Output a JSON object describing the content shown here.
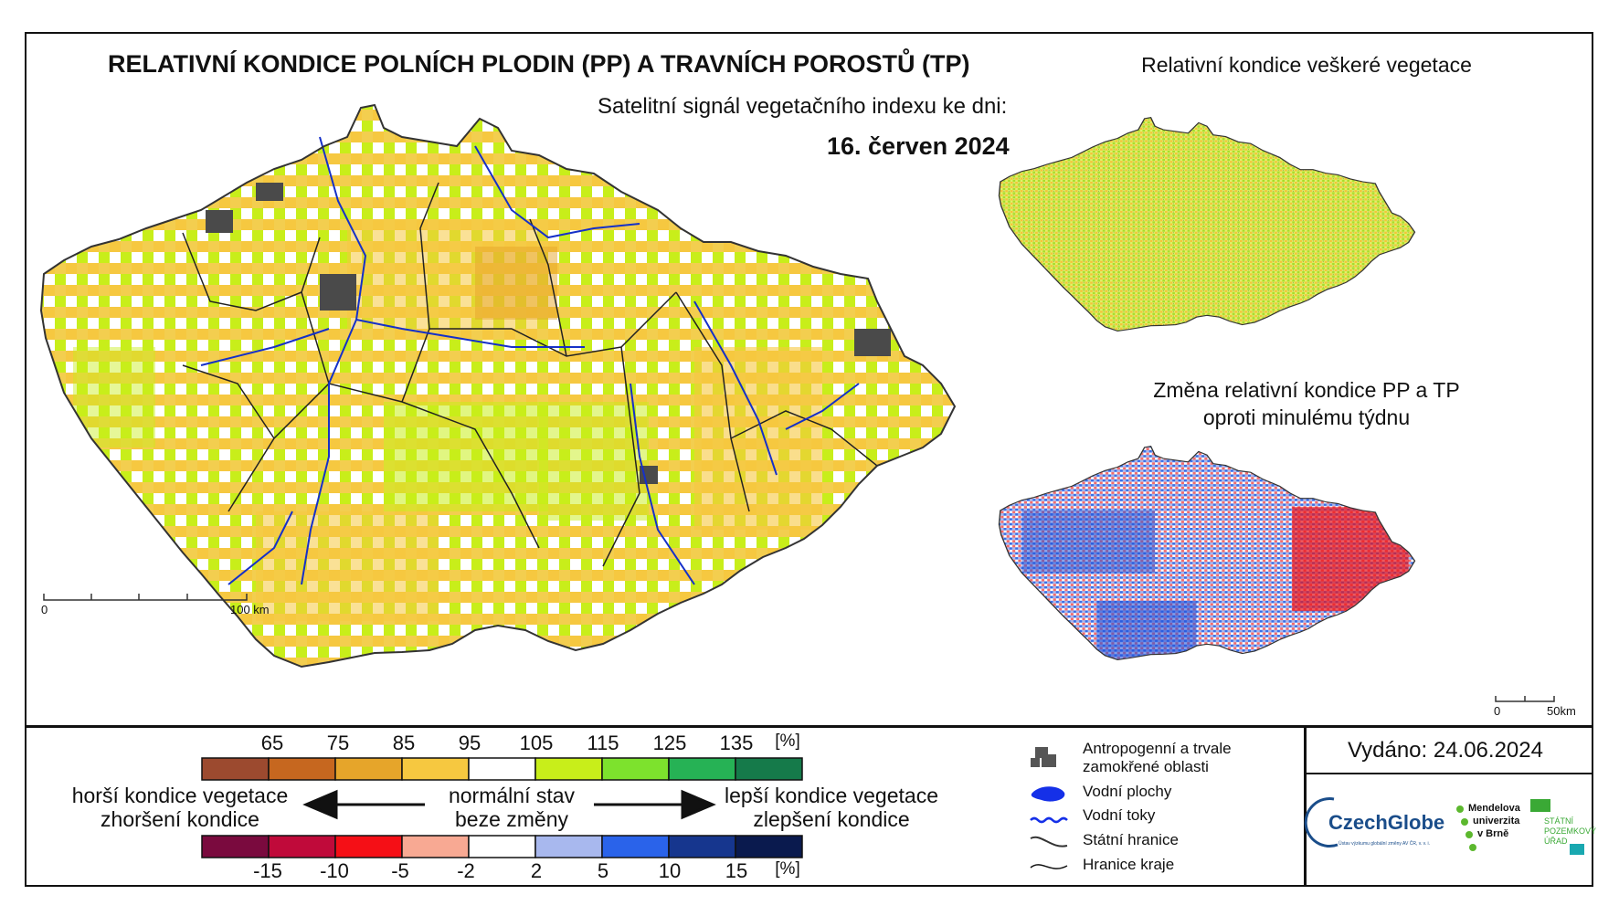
{
  "main": {
    "title": "RELATIVNÍ KONDICE POLNÍCH PLODIN (PP) A TRAVNÍCH POROSTŮ (TP)",
    "subtitle": "Satelitní signál vegetačního indexu ke dni:",
    "date": "16. červen 2024",
    "scale_start": "0",
    "scale_end": "100 km"
  },
  "inset_top": {
    "title": "Relativní kondice veškeré vegetace"
  },
  "inset_bottom": {
    "title_line1": "Změna relativní kondice PP a TP",
    "title_line2": "oproti minulému týdnu",
    "scale_start": "0",
    "scale_end": "50km"
  },
  "legend": {
    "top_labels": [
      "65",
      "75",
      "85",
      "95",
      "105",
      "115",
      "125",
      "135",
      "[%]"
    ],
    "top_colors": [
      "#9c4a2f",
      "#c6671f",
      "#e6a52a",
      "#f6c840",
      "#ffffff",
      "#c8ee1a",
      "#7de22d",
      "#26b255",
      "#157a4a"
    ],
    "bottom_labels": [
      "-15",
      "-10",
      "-5",
      "-2",
      "2",
      "5",
      "10",
      "15",
      "[%]"
    ],
    "bottom_colors": [
      "#7a0a3e",
      "#c00a3a",
      "#f50f16",
      "#f8a993",
      "#ffffff",
      "#a8b8ee",
      "#2a63ea",
      "#16368e",
      "#0a1a4e"
    ],
    "worse_line1": "horší kondice vegetace",
    "worse_line2": "zhoršení kondice",
    "normal_line1": "normální stav",
    "normal_line2": "beze změny",
    "better_line1": "lepší kondice vegetace",
    "better_line2": "zlepšení kondice"
  },
  "symbols": {
    "anthropogenic_line1": "Antropogenní a trvale",
    "anthropogenic_line2": "zamokřené oblasti",
    "water_bodies": "Vodní plochy",
    "rivers": "Vodní toky",
    "state_border": "Státní hranice",
    "region_border": "Hranice kraje"
  },
  "footer": {
    "issued": "Vydáno: 24.06.2024",
    "czechglobe": "CzechGlobe",
    "czechglobe_sub": "Ústav výzkumu globální změny AV ČR, v. v. i.",
    "mendel_line1": "Mendelova",
    "mendel_line2": "univerzita",
    "mendel_line3": "v Brně",
    "spu_line1": "STÁTNÍ",
    "spu_line2": "POZEMKOVÝ",
    "spu_line3": "ÚŘAD"
  }
}
